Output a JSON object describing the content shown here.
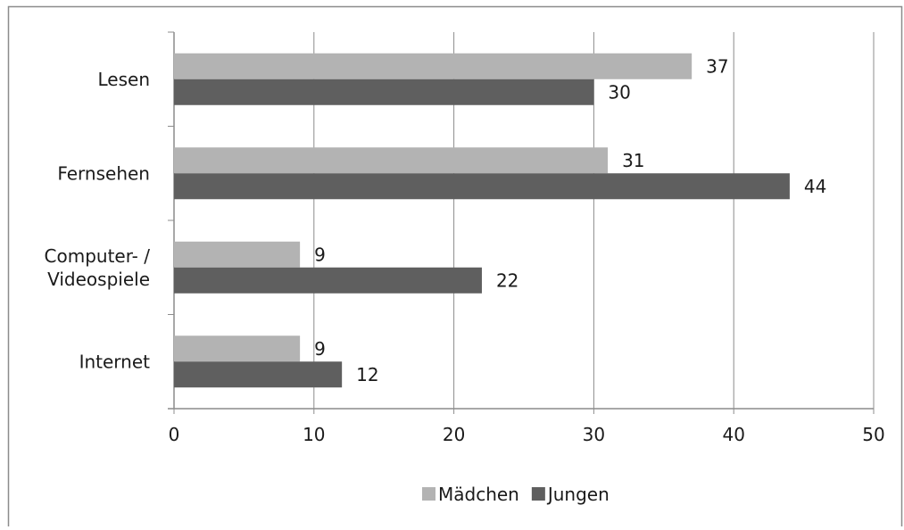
{
  "chart_data": {
    "type": "bar",
    "orientation": "horizontal",
    "title": "",
    "xlabel": "",
    "ylabel": "",
    "categories": [
      [
        "Lesen"
      ],
      [
        "Fernsehen"
      ],
      [
        "Computer- /",
        "Videospiele"
      ],
      [
        "Internet"
      ]
    ],
    "series": [
      {
        "name": "Mädchen",
        "color": "#b3b3b3",
        "values": [
          37,
          31,
          9,
          9
        ]
      },
      {
        "name": "Jungen",
        "color": "#5f5f5f",
        "values": [
          30,
          44,
          22,
          12
        ]
      }
    ],
    "xlim": [
      0,
      50
    ],
    "xticks": [
      0,
      10,
      20,
      30,
      40,
      50
    ],
    "grid": "vertical",
    "data_labels": true,
    "legend": "bottom"
  }
}
